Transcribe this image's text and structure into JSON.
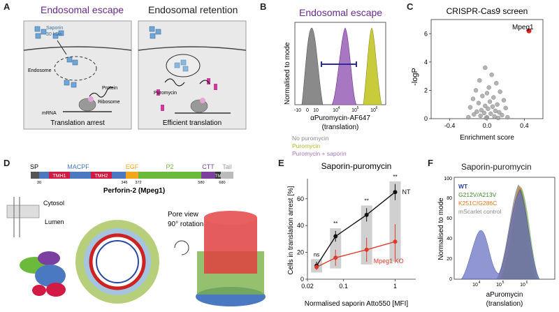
{
  "panelA": {
    "letter": "A",
    "left_title": "Endosomal escape",
    "right_title": "Endosomal retention",
    "saporin": "Saporin",
    "saporin_kda": "30 kDa",
    "endosome": "Endosome",
    "protein": "Protein",
    "ribosome": "Ribosome",
    "mrna": "mRNA",
    "puromycin": "Puromycin",
    "left_caption": "Translation arrest",
    "right_caption": "Efficient translation"
  },
  "panelB": {
    "letter": "B",
    "title": "Endosomal escape",
    "ylabel": "Normalised to mode",
    "xlabel": "αPuromycin-AF647",
    "xlabel2": "(translation)",
    "ticks": [
      "-10",
      "0",
      "10",
      "10",
      "10",
      "10"
    ],
    "exps": [
      "4",
      "5",
      "6"
    ],
    "legend": [
      {
        "label": "No puromycin",
        "color": "#8a8a8a"
      },
      {
        "label": "Puromycin",
        "color": "#c8cc3a"
      },
      {
        "label": "Puromycin + saporin",
        "color": "#a777c2"
      }
    ]
  },
  "panelC": {
    "letter": "C",
    "chart_data": {
      "type": "scatter",
      "title": "CRISPR-Cas9 screen",
      "xlabel": "Enrichment score",
      "ylabel": "-logP",
      "xlim": [
        -0.6,
        0.6
      ],
      "ylim": [
        0,
        7
      ],
      "xticks": [
        "-0.4",
        "0.0",
        "0.4"
      ],
      "yticks": [
        "0",
        "2",
        "4",
        "6"
      ],
      "highlight": {
        "name": "Mpeg1",
        "x": 0.45,
        "y": 6.2,
        "color": "#e02020"
      },
      "points": [
        [
          -0.02,
          3.6
        ],
        [
          0.05,
          3.1
        ],
        [
          -0.08,
          2.7
        ],
        [
          0.1,
          2.5
        ],
        [
          0.02,
          2.2
        ],
        [
          -0.12,
          2.0
        ],
        [
          0.14,
          1.9
        ],
        [
          0.0,
          1.8
        ],
        [
          -0.05,
          1.6
        ],
        [
          0.07,
          1.5
        ],
        [
          -0.15,
          1.4
        ],
        [
          0.18,
          1.3
        ],
        [
          0.03,
          1.2
        ],
        [
          -0.09,
          1.1
        ],
        [
          0.11,
          1.0
        ],
        [
          -0.02,
          0.9
        ],
        [
          0.06,
          0.85
        ],
        [
          -0.18,
          0.8
        ],
        [
          0.2,
          0.75
        ],
        [
          0.01,
          0.7
        ],
        [
          -0.06,
          0.6
        ],
        [
          0.09,
          0.55
        ],
        [
          -0.11,
          0.5
        ],
        [
          0.13,
          0.45
        ],
        [
          -0.03,
          0.4
        ],
        [
          0.04,
          0.35
        ],
        [
          -0.14,
          0.3
        ],
        [
          0.16,
          0.25
        ],
        [
          -0.07,
          0.2
        ],
        [
          0.08,
          0.15
        ],
        [
          0.0,
          0.1
        ],
        [
          -0.2,
          0.1
        ],
        [
          0.22,
          0.1
        ],
        [
          -0.01,
          0.05
        ],
        [
          0.12,
          0.05
        ]
      ]
    }
  },
  "panelD": {
    "letter": "D",
    "domains": [
      "SP",
      "TMH1",
      "MACPF",
      "TMH2",
      "EGF",
      "P2",
      "CTT",
      "TM",
      "Tail"
    ],
    "positions": [
      "30",
      "346",
      "372",
      "580",
      "680"
    ],
    "protein_name": "Perforin-2 (Mpeg1)",
    "cytosol": "Cytosol",
    "lumen": "Lumen",
    "pore_view": "Pore view",
    "rotation": "90° rotation"
  },
  "panelE": {
    "letter": "E",
    "chart_data": {
      "type": "line",
      "title": "Saporin-puromycin",
      "xlabel": "Normalised saporin Atto550 [MFI]",
      "ylabel": "Cells in translation arrest [%]",
      "xlim_log10": [
        -1.7,
        0.4
      ],
      "ylim": [
        0,
        75
      ],
      "xticks": [
        "0.02",
        "0.1",
        "1"
      ],
      "yticks": [
        "0",
        "20",
        "40",
        "60"
      ],
      "significance": [
        "ns",
        "**",
        "**",
        "**"
      ],
      "series": [
        {
          "name": "NT",
          "color": "#111111",
          "x": [
            0.03,
            0.07,
            0.28,
            1.0
          ],
          "values": [
            10,
            32,
            48,
            65
          ],
          "errors": [
            3,
            4,
            5,
            6
          ]
        },
        {
          "name": "Mpeg1 KO",
          "color": "#e0382a",
          "x": [
            0.03,
            0.07,
            0.28,
            1.0
          ],
          "values": [
            9,
            16,
            22,
            28
          ],
          "errors": [
            2,
            6,
            9,
            13
          ]
        }
      ]
    }
  },
  "panelF": {
    "letter": "F",
    "title": "Saporin-puromycin",
    "ylabel": "Normalised to mode",
    "xlabel": "aPuromycin",
    "xlabel2": "(translation)",
    "yticks": [
      "0",
      "20",
      "40",
      "60",
      "80",
      "100"
    ],
    "exps": [
      "4",
      "5",
      "6"
    ],
    "legend": [
      {
        "label": "WT",
        "color": "#2b3e9a"
      },
      {
        "label": "G212V/A213V",
        "color": "#3f8a2e"
      },
      {
        "label": "K251C/G286C",
        "color": "#e07a1f"
      },
      {
        "label": "mScarlet control",
        "color": "#8a8a8a"
      }
    ]
  }
}
